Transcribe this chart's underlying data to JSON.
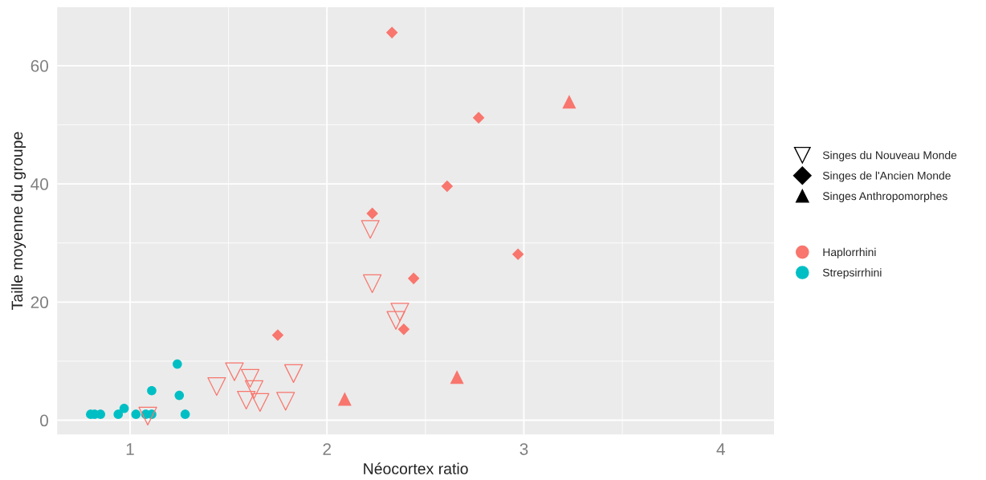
{
  "chart_data": {
    "type": "scatter",
    "xlabel": "Néocortex ratio",
    "ylabel": "Taille moyenne du groupe",
    "xlim": [
      0.63,
      4.27
    ],
    "ylim": [
      -2.4,
      69.9
    ],
    "xticks": [
      1,
      2,
      3,
      4
    ],
    "yticks": [
      0,
      20,
      40,
      60
    ],
    "grid": true,
    "legend": "right",
    "series": [
      {
        "name": "Singes du Nouveau Monde",
        "color": "#f8766d",
        "marker": "triangle-down",
        "x": [
          1.09,
          1.44,
          1.53,
          1.61,
          1.63,
          1.59,
          1.66,
          1.79,
          1.83,
          2.22,
          2.23,
          2.37,
          2.35
        ],
        "values": [
          0.7,
          5.7,
          8.2,
          7.1,
          5.2,
          3.4,
          3.0,
          3.2,
          7.9,
          32.3,
          23.1,
          18.3,
          16.9
        ]
      },
      {
        "name": "Singes de l'Ancien Monde",
        "color": "#f8766d",
        "marker": "diamond",
        "x": [
          1.75,
          2.33,
          2.77,
          2.61,
          2.23,
          2.97,
          2.44,
          2.39
        ],
        "values": [
          14.4,
          65.6,
          51.2,
          39.6,
          35.0,
          28.1,
          24.0,
          15.4
        ]
      },
      {
        "name": "Singes Anthropomorphes",
        "color": "#f8766d",
        "marker": "triangle",
        "x": [
          3.23,
          2.09,
          2.66
        ],
        "values": [
          53.9,
          3.6,
          7.3
        ]
      },
      {
        "name": "Haplorrhini",
        "color": "#f8766d",
        "marker": "circle"
      },
      {
        "name": "Strepsirrhini",
        "color": "#00bfc4",
        "marker": "circle",
        "x": [
          0.8,
          0.82,
          0.85,
          0.94,
          0.97,
          1.03,
          1.08,
          1.11,
          1.11,
          1.24,
          1.25,
          1.28
        ],
        "values": [
          1,
          1,
          1,
          1,
          2,
          1,
          1,
          1,
          5,
          9.5,
          4.2,
          1
        ]
      }
    ]
  }
}
